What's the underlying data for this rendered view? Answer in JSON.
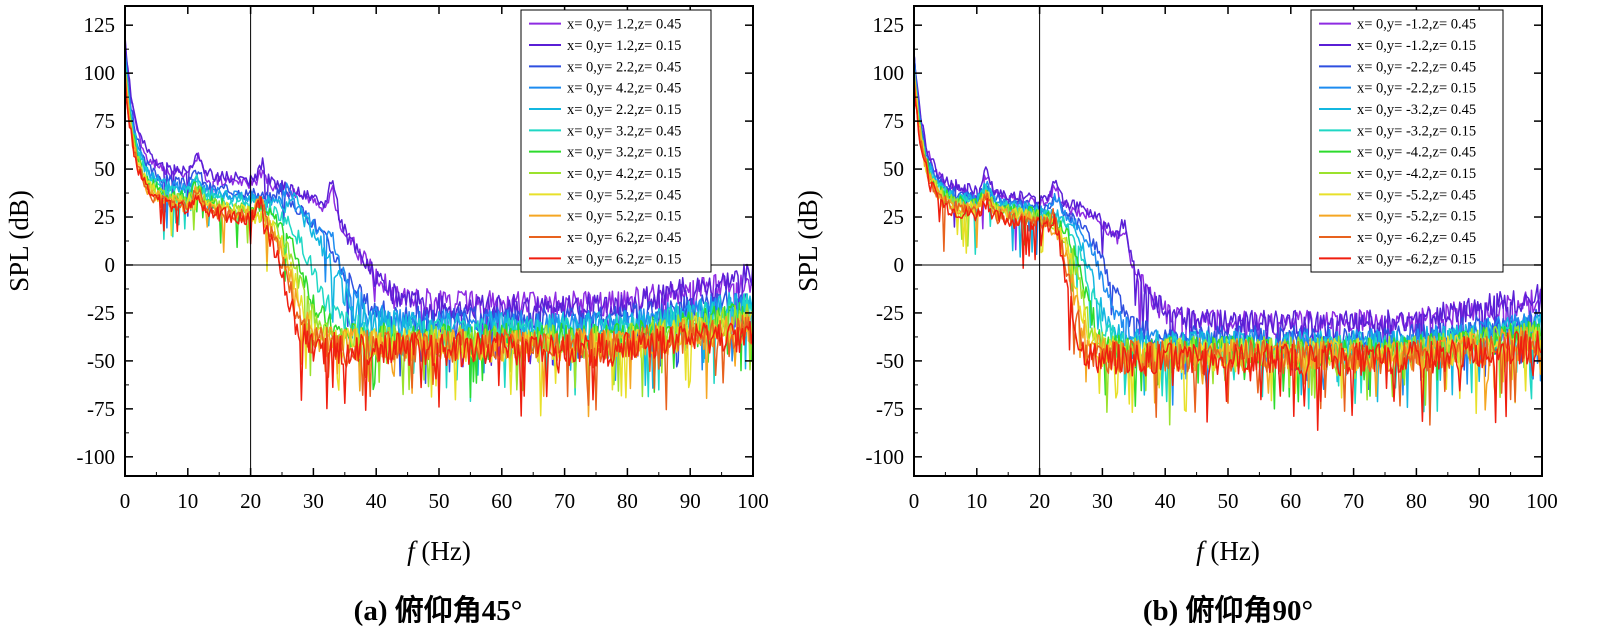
{
  "figure_caption_note": "",
  "chart_data": [
    {
      "type": "line",
      "panel_id": "a",
      "caption": "(a) 俯仰角45°",
      "xlabel_italic": "f",
      "xlabel_unit": " (Hz)",
      "ylabel": "SPL (dB)",
      "xlim": [
        0,
        100
      ],
      "ylim": [
        -110,
        135
      ],
      "xticks": [
        0,
        10,
        20,
        30,
        40,
        50,
        60,
        70,
        80,
        90,
        100
      ],
      "yticks": [
        125,
        100,
        75,
        50,
        25,
        0,
        -25,
        -50,
        -75,
        -100
      ],
      "reference_lines": {
        "vertical_x": 20,
        "horizontal_y": 0
      },
      "legend_position": "top-right",
      "series": [
        {
          "name": "x= 0,y= 1.2,z= 0.45",
          "color": "#8E2BE2",
          "profile": {
            "start": 117,
            "mid": 50,
            "knee": 37,
            "width": 3.0,
            "floor": -20,
            "end": -8,
            "noise": 6,
            "seed": 1,
            "bumps": [
              [
                11.5,
                10
              ],
              [
                22,
                8
              ],
              [
                33,
                14
              ]
            ]
          }
        },
        {
          "name": "x= 0,y= 1.2,z= 0.15",
          "color": "#5A1FD6",
          "profile": {
            "start": 120,
            "mid": 52,
            "knee": 37,
            "width": 3.0,
            "floor": -22,
            "end": -4,
            "noise": 6,
            "seed": 2,
            "bumps": [
              [
                11.5,
                10
              ],
              [
                22,
                10
              ],
              [
                33,
                18
              ]
            ]
          }
        },
        {
          "name": "x= 0,y= 2.2,z= 0.45",
          "color": "#2F4FE0",
          "profile": {
            "start": 113,
            "mid": 45,
            "knee": 34,
            "width": 2.6,
            "floor": -28,
            "end": -18,
            "noise": 6,
            "seed": 3,
            "bumps": [
              [
                11.5,
                8
              ],
              [
                25,
                8
              ]
            ]
          }
        },
        {
          "name": "x= 0,y= 4.2,z= 0.45",
          "color": "#1E8CF0",
          "profile": {
            "start": 110,
            "mid": 43,
            "knee": 34,
            "width": 2.4,
            "floor": -30,
            "end": -20,
            "noise": 6,
            "seed": 4,
            "bumps": [
              [
                11.5,
                8
              ],
              [
                26,
                10
              ],
              [
                33,
                8
              ]
            ]
          }
        },
        {
          "name": "x= 0,y= 2.2,z= 0.15",
          "color": "#13B7E0",
          "profile": {
            "start": 108,
            "mid": 42,
            "knee": 33,
            "width": 2.2,
            "floor": -32,
            "end": -20,
            "noise": 7,
            "seed": 5,
            "bumps": [
              [
                11.5,
                8
              ],
              [
                27,
                8
              ]
            ]
          }
        },
        {
          "name": "x= 0,y= 3.2,z= 0.45",
          "color": "#1FD7C4",
          "profile": {
            "start": 106,
            "mid": 40,
            "knee": 30,
            "width": 2.0,
            "floor": -35,
            "end": -22,
            "noise": 7,
            "seed": 6,
            "bumps": [
              [
                11.5,
                8
              ]
            ]
          }
        },
        {
          "name": "x= 0,y= 3.2,z= 0.15",
          "color": "#2DDB2D",
          "profile": {
            "start": 104,
            "mid": 38,
            "knee": 28.5,
            "width": 1.8,
            "floor": -38,
            "end": -25,
            "noise": 7,
            "seed": 7,
            "bumps": [
              [
                11.5,
                8
              ]
            ]
          }
        },
        {
          "name": "x= 0,y= 4.2,z= 0.15",
          "color": "#9BE22D",
          "profile": {
            "start": 103,
            "mid": 36,
            "knee": 27.5,
            "width": 1.7,
            "floor": -40,
            "end": -28,
            "noise": 8,
            "seed": 8,
            "bumps": [
              [
                11.5,
                8
              ]
            ]
          }
        },
        {
          "name": "x= 0,y= 5.2,z= 0.45",
          "color": "#E8E02A",
          "profile": {
            "start": 102,
            "mid": 35,
            "knee": 27,
            "width": 1.6,
            "floor": -42,
            "end": -30,
            "noise": 8,
            "seed": 9,
            "bumps": [
              [
                11.5,
                8
              ]
            ]
          }
        },
        {
          "name": "x= 0,y= 5.2,z= 0.15",
          "color": "#F5A623",
          "profile": {
            "start": 100,
            "mid": 34,
            "knee": 26.5,
            "width": 1.5,
            "floor": -42,
            "end": -32,
            "noise": 8,
            "seed": 10,
            "bumps": [
              [
                11.5,
                8
              ],
              [
                21.5,
                10
              ]
            ]
          }
        },
        {
          "name": "x= 0,y= 6.2,z= 0.45",
          "color": "#E8621E",
          "profile": {
            "start": 99,
            "mid": 33,
            "knee": 26,
            "width": 1.4,
            "floor": -42,
            "end": -34,
            "noise": 8,
            "seed": 11,
            "bumps": [
              [
                11.5,
                8
              ],
              [
                21.5,
                12
              ]
            ]
          }
        },
        {
          "name": "x= 0,y= 6.2,z= 0.15",
          "color": "#F01E0F",
          "profile": {
            "start": 98,
            "mid": 32,
            "knee": 25.5,
            "width": 1.3,
            "floor": -44,
            "end": -36,
            "noise": 8,
            "seed": 12,
            "bumps": [
              [
                11.5,
                8
              ],
              [
                21.5,
                12
              ]
            ]
          }
        }
      ]
    },
    {
      "type": "line",
      "panel_id": "b",
      "caption": "(b) 俯仰角90°",
      "xlabel_italic": "f",
      "xlabel_unit": " (Hz)",
      "ylabel": "SPL (dB)",
      "xlim": [
        0,
        100
      ],
      "ylim": [
        -110,
        135
      ],
      "xticks": [
        0,
        10,
        20,
        30,
        40,
        50,
        60,
        70,
        80,
        90,
        100
      ],
      "yticks": [
        125,
        100,
        75,
        50,
        25,
        0,
        -25,
        -50,
        -75,
        -100
      ],
      "reference_lines": {
        "vertical_x": 20,
        "horizontal_y": 0
      },
      "legend_position": "top-right",
      "series": [
        {
          "name": "x= 0,y= -1.2,z= 0.45",
          "color": "#8E2BE2",
          "profile": {
            "start": 112,
            "mid": 40,
            "knee": 35,
            "width": 2.4,
            "floor": -30,
            "end": -18,
            "noise": 6,
            "seed": 21,
            "bumps": [
              [
                11.5,
                10
              ],
              [
                22.5,
                10
              ],
              [
                33.5,
                10
              ]
            ]
          }
        },
        {
          "name": "x= 0,y= -1.2,z= 0.15",
          "color": "#5A1FD6",
          "profile": {
            "start": 113,
            "mid": 42,
            "knee": 35,
            "width": 2.4,
            "floor": -30,
            "end": -16,
            "noise": 6,
            "seed": 22,
            "bumps": [
              [
                11.5,
                10
              ],
              [
                22.5,
                12
              ],
              [
                33.5,
                12
              ]
            ]
          }
        },
        {
          "name": "x= 0,y= -2.2,z= 0.45",
          "color": "#2F4FE0",
          "profile": {
            "start": 108,
            "mid": 38,
            "knee": 31,
            "width": 2.0,
            "floor": -38,
            "end": -28,
            "noise": 6,
            "seed": 23,
            "bumps": [
              [
                11.5,
                8
              ],
              [
                22.5,
                8
              ]
            ]
          }
        },
        {
          "name": "x= 0,y= -2.2,z= 0.15",
          "color": "#1E8CF0",
          "profile": {
            "start": 106,
            "mid": 37,
            "knee": 30,
            "width": 1.8,
            "floor": -40,
            "end": -30,
            "noise": 6,
            "seed": 24,
            "bumps": [
              [
                11.5,
                8
              ],
              [
                22.5,
                8
              ]
            ]
          }
        },
        {
          "name": "x= 0,y= -3.2,z= 0.45",
          "color": "#13B7E0",
          "profile": {
            "start": 104,
            "mid": 36,
            "knee": 28.5,
            "width": 1.6,
            "floor": -42,
            "end": -32,
            "noise": 7,
            "seed": 25,
            "bumps": [
              [
                11.5,
                8
              ]
            ]
          }
        },
        {
          "name": "x= 0,y= -3.2,z= 0.15",
          "color": "#1FD7C4",
          "profile": {
            "start": 103,
            "mid": 35,
            "knee": 28,
            "width": 1.5,
            "floor": -44,
            "end": -34,
            "noise": 7,
            "seed": 26,
            "bumps": [
              [
                11.5,
                8
              ]
            ]
          }
        },
        {
          "name": "x= 0,y= -4.2,z= 0.45",
          "color": "#2DDB2D",
          "profile": {
            "start": 102,
            "mid": 34,
            "knee": 27,
            "width": 1.4,
            "floor": -45,
            "end": -36,
            "noise": 7,
            "seed": 27,
            "bumps": [
              [
                11.5,
                8
              ]
            ]
          }
        },
        {
          "name": "x= 0,y= -4.2,z= 0.15",
          "color": "#9BE22D",
          "profile": {
            "start": 101,
            "mid": 33,
            "knee": 26.5,
            "width": 1.3,
            "floor": -46,
            "end": -38,
            "noise": 8,
            "seed": 28,
            "bumps": [
              [
                11.5,
                8
              ]
            ]
          }
        },
        {
          "name": "x= 0,y= -5.2,z= 0.45",
          "color": "#E8E02A",
          "profile": {
            "start": 100,
            "mid": 32,
            "knee": 26,
            "width": 1.2,
            "floor": -47,
            "end": -40,
            "noise": 8,
            "seed": 29,
            "bumps": [
              [
                11.5,
                8
              ]
            ]
          }
        },
        {
          "name": "x= 0,y= -5.2,z= 0.15",
          "color": "#F5A623",
          "profile": {
            "start": 99,
            "mid": 31,
            "knee": 25.5,
            "width": 1.2,
            "floor": -47,
            "end": -40,
            "noise": 8,
            "seed": 30,
            "bumps": [
              [
                11.5,
                8
              ]
            ]
          }
        },
        {
          "name": "x= 0,y= -6.2,z= 0.45",
          "color": "#E8621E",
          "profile": {
            "start": 98,
            "mid": 30,
            "knee": 25,
            "width": 1.1,
            "floor": -48,
            "end": -42,
            "noise": 8,
            "seed": 31,
            "bumps": [
              [
                11.5,
                8
              ],
              [
                22.5,
                10
              ]
            ]
          }
        },
        {
          "name": "x= 0,y= -6.2,z= 0.15",
          "color": "#F01E0F",
          "profile": {
            "start": 97,
            "mid": 29,
            "knee": 24.5,
            "width": 1.0,
            "floor": -49,
            "end": -42,
            "noise": 8,
            "seed": 32,
            "bumps": [
              [
                11.5,
                8
              ],
              [
                22.5,
                10
              ]
            ]
          }
        }
      ]
    }
  ]
}
